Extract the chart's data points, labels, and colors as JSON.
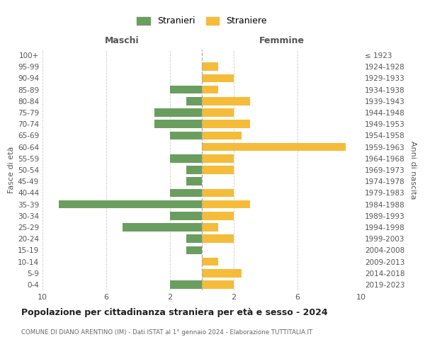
{
  "age_groups": [
    "100+",
    "95-99",
    "90-94",
    "85-89",
    "80-84",
    "75-79",
    "70-74",
    "65-69",
    "60-64",
    "55-59",
    "50-54",
    "45-49",
    "40-44",
    "35-39",
    "30-34",
    "25-29",
    "20-24",
    "15-19",
    "10-14",
    "5-9",
    "0-4"
  ],
  "birth_years": [
    "≤ 1923",
    "1924-1928",
    "1929-1933",
    "1934-1938",
    "1939-1943",
    "1944-1948",
    "1949-1953",
    "1954-1958",
    "1959-1963",
    "1964-1968",
    "1969-1973",
    "1974-1978",
    "1979-1983",
    "1984-1988",
    "1989-1993",
    "1994-1998",
    "1999-2003",
    "2004-2008",
    "2009-2013",
    "2014-2018",
    "2019-2023"
  ],
  "maschi": [
    0,
    0,
    0,
    2,
    1,
    3,
    3,
    2,
    0,
    2,
    1,
    1,
    2,
    9,
    2,
    5,
    1,
    1,
    0,
    0,
    2
  ],
  "femmine": [
    0,
    1,
    2,
    1,
    3,
    2,
    3,
    2.5,
    9,
    2,
    2,
    0,
    2,
    3,
    2,
    1,
    2,
    0,
    1,
    2.5,
    2
  ],
  "maschi_color": "#6a9e5f",
  "femmine_color": "#f5bc3a",
  "title": "Popolazione per cittadinanza straniera per età e sesso - 2024",
  "subtitle": "COMUNE DI DIANO ARENTINO (IM) - Dati ISTAT al 1° gennaio 2024 - Elaborazione TUTTITALIA.IT",
  "legend_maschi": "Stranieri",
  "legend_femmine": "Straniere",
  "xlabel_left": "Maschi",
  "xlabel_right": "Femmine",
  "ylabel_left": "Fasce di età",
  "ylabel_right": "Anni di nascita",
  "xlim": 10,
  "background_color": "#ffffff",
  "grid_color": "#cccccc"
}
